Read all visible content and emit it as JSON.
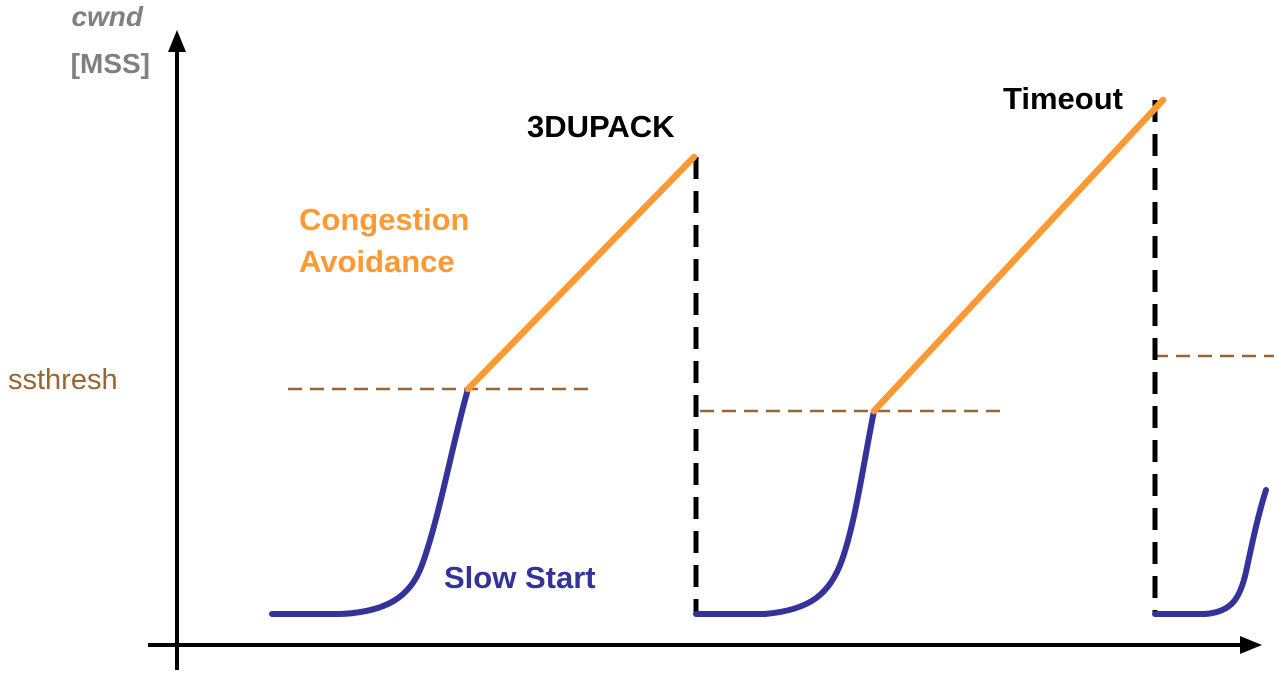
{
  "axis": {
    "y_label_line1": "cwnd",
    "y_label_line2": "[MSS]"
  },
  "labels": {
    "ssthresh": "ssthresh",
    "congestion_line1": "Congestion",
    "congestion_line2": "Avoidance",
    "slow_start": "Slow Start",
    "dupack": "3DUPACK",
    "timeout": "Timeout"
  },
  "colors": {
    "axis": "#000000",
    "slow_start": "#333399",
    "congestion_avoidance": "#FF9933",
    "ssthresh": "#996633",
    "loss_event": "#000000",
    "axis_label": "#808080"
  }
}
